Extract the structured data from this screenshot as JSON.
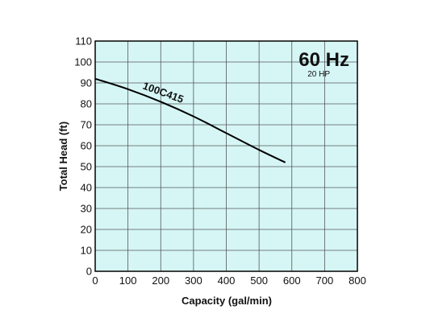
{
  "chart_data": {
    "type": "line",
    "title": "",
    "xlabel": "Capacity (gal/min)",
    "ylabel": "Total Head (ft)",
    "xlim": [
      0,
      800
    ],
    "ylim": [
      0,
      110
    ],
    "x_ticks": [
      0,
      100,
      200,
      300,
      400,
      500,
      600,
      700,
      800
    ],
    "y_ticks": [
      0,
      10,
      20,
      30,
      40,
      50,
      60,
      70,
      80,
      90,
      100,
      110
    ],
    "grid": true,
    "background_color": "#d6f6f6",
    "line_color": "#000000",
    "annotations": {
      "frequency": "60 Hz",
      "power": "20 HP"
    },
    "series": [
      {
        "name": "100C415",
        "x": [
          0,
          100,
          200,
          300,
          400,
          500,
          580
        ],
        "y": [
          92,
          87,
          81,
          74,
          66,
          58,
          52
        ]
      }
    ]
  }
}
